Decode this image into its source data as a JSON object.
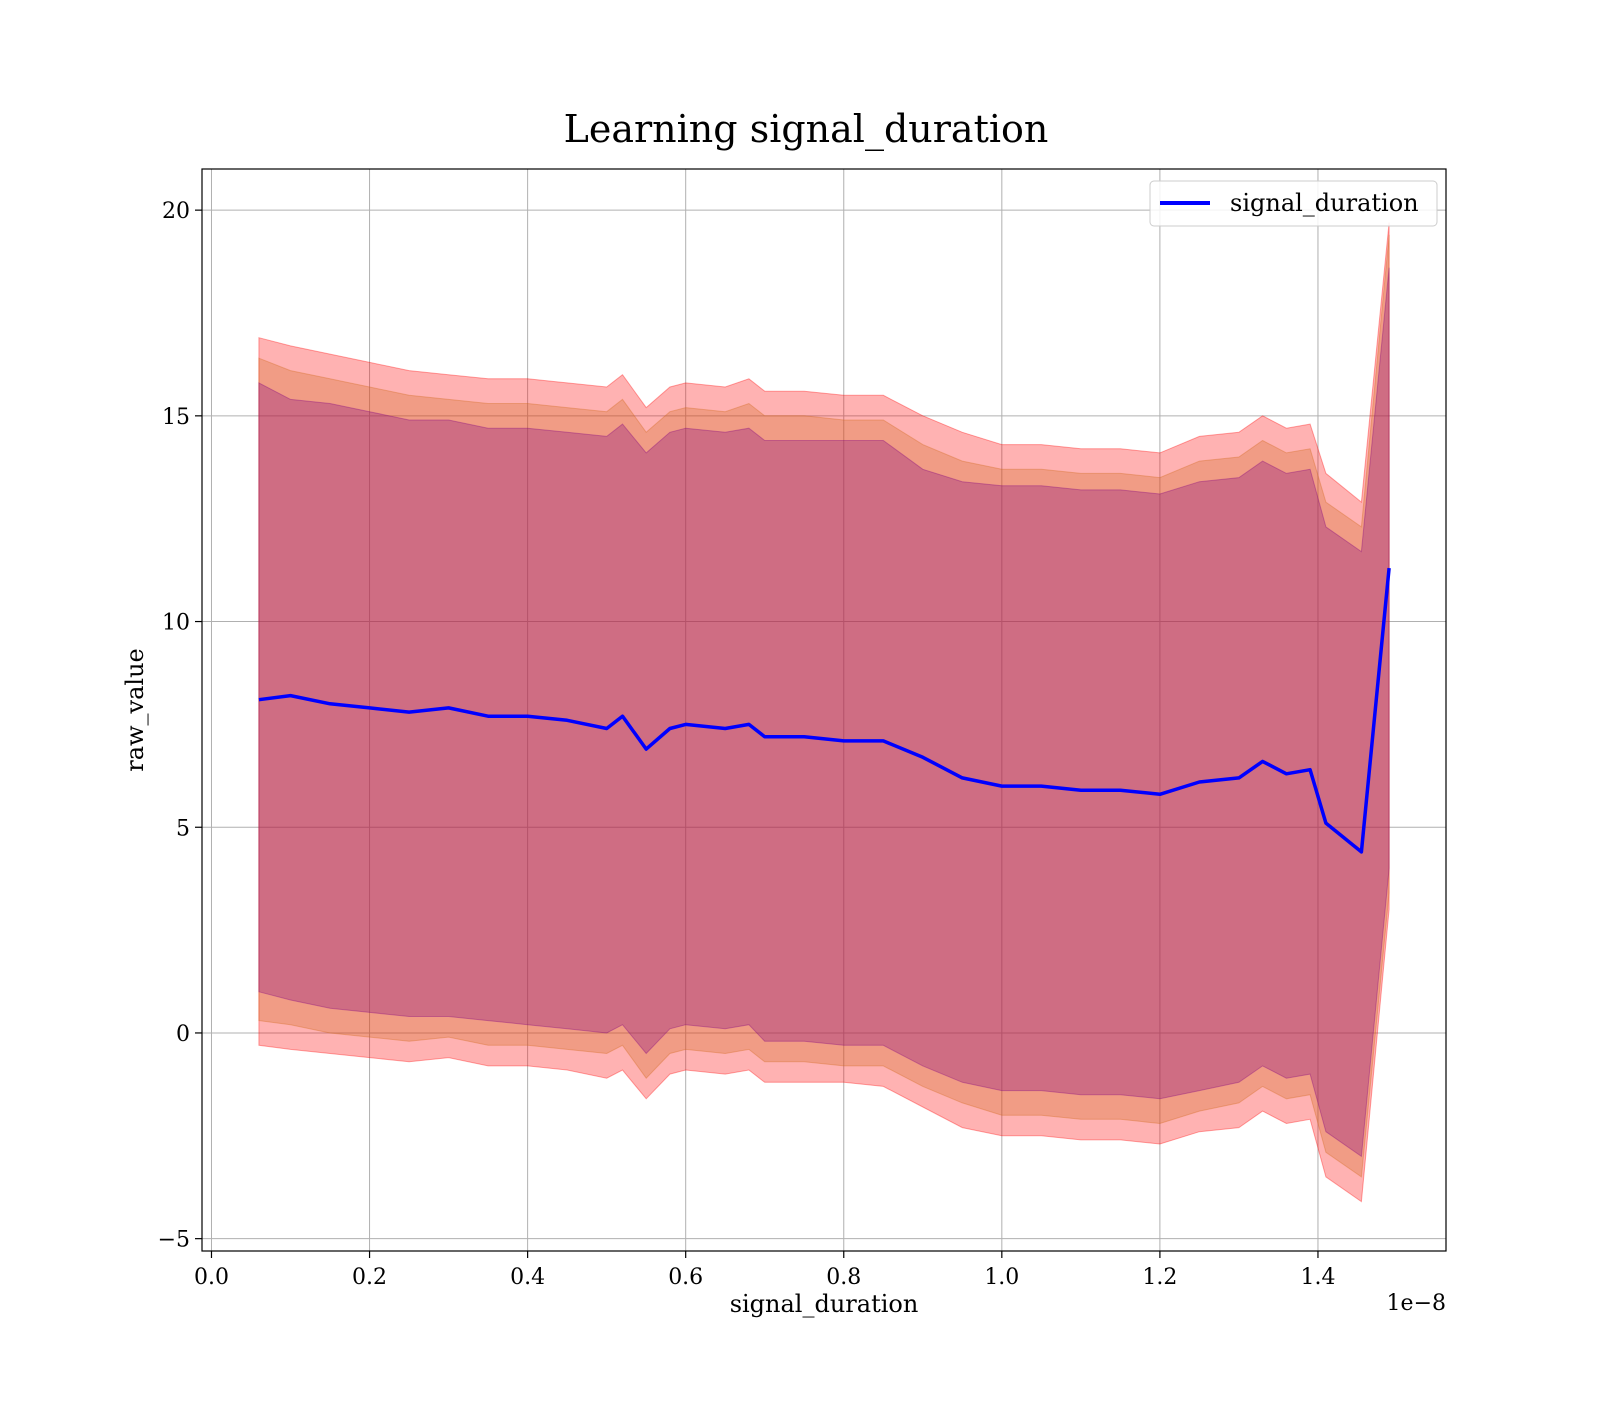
{
  "chart_data": {
    "type": "area",
    "title": "Learning signal_duration",
    "xlabel": "signal_duration",
    "ylabel": "raw_value",
    "x_offset_label": "1e−8",
    "xlim": [
      -0.012,
      1.562
    ],
    "ylim": [
      -5.3,
      21.0
    ],
    "x_scale_note": "x values in units of 1e-8",
    "x_ticks": [
      0.0,
      0.2,
      0.4,
      0.6,
      0.8,
      1.0,
      1.2,
      1.4
    ],
    "x_tick_labels": [
      "0.0",
      "0.2",
      "0.4",
      "0.6",
      "0.8",
      "1.0",
      "1.2",
      "1.4"
    ],
    "y_ticks": [
      -5,
      0,
      5,
      10,
      15,
      20
    ],
    "y_tick_labels": [
      "−5",
      "0",
      "5",
      "10",
      "15",
      "20"
    ],
    "grid": true,
    "legend": {
      "placement": "upper right",
      "entries": [
        "signal_duration"
      ]
    },
    "colors": {
      "line": "#0000ff",
      "band_outer": "#ff0000",
      "band_middle": "#d2691e",
      "band_inner": "#800080"
    },
    "x": [
      0.06,
      0.1,
      0.15,
      0.2,
      0.25,
      0.3,
      0.35,
      0.4,
      0.45,
      0.5,
      0.52,
      0.55,
      0.58,
      0.6,
      0.65,
      0.68,
      0.7,
      0.75,
      0.8,
      0.85,
      0.9,
      0.95,
      1.0,
      1.05,
      1.1,
      1.15,
      1.2,
      1.25,
      1.3,
      1.33,
      1.36,
      1.39,
      1.41,
      1.455,
      1.49
    ],
    "series": [
      {
        "name": "signal_duration",
        "values": [
          8.1,
          8.2,
          8.0,
          7.9,
          7.8,
          7.9,
          7.7,
          7.7,
          7.6,
          7.4,
          7.7,
          6.9,
          7.4,
          7.5,
          7.4,
          7.5,
          7.2,
          7.2,
          7.1,
          7.1,
          6.7,
          6.2,
          6.0,
          6.0,
          5.9,
          5.9,
          5.8,
          6.1,
          6.2,
          6.6,
          6.3,
          6.4,
          5.1,
          4.4,
          11.3
        ]
      }
    ],
    "bands": [
      {
        "level": "outer",
        "upper": [
          16.9,
          16.7,
          16.5,
          16.3,
          16.1,
          16.0,
          15.9,
          15.9,
          15.8,
          15.7,
          16.0,
          15.2,
          15.7,
          15.8,
          15.7,
          15.9,
          15.6,
          15.6,
          15.5,
          15.5,
          15.0,
          14.6,
          14.3,
          14.3,
          14.2,
          14.2,
          14.1,
          14.5,
          14.6,
          15.0,
          14.7,
          14.8,
          13.6,
          12.9,
          19.7
        ],
        "lower": [
          -0.3,
          -0.4,
          -0.5,
          -0.6,
          -0.7,
          -0.6,
          -0.8,
          -0.8,
          -0.9,
          -1.1,
          -0.9,
          -1.6,
          -1.0,
          -0.9,
          -1.0,
          -0.9,
          -1.2,
          -1.2,
          -1.2,
          -1.3,
          -1.8,
          -2.3,
          -2.5,
          -2.5,
          -2.6,
          -2.6,
          -2.7,
          -2.4,
          -2.3,
          -1.9,
          -2.2,
          -2.1,
          -3.5,
          -4.1,
          3.0
        ]
      },
      {
        "level": "middle",
        "upper": [
          16.4,
          16.1,
          15.9,
          15.7,
          15.5,
          15.4,
          15.3,
          15.3,
          15.2,
          15.1,
          15.4,
          14.6,
          15.1,
          15.2,
          15.1,
          15.3,
          15.0,
          15.0,
          14.9,
          14.9,
          14.3,
          13.9,
          13.7,
          13.7,
          13.6,
          13.6,
          13.5,
          13.9,
          14.0,
          14.4,
          14.1,
          14.2,
          12.9,
          12.3,
          19.4
        ],
        "lower": [
          0.3,
          0.2,
          0.0,
          -0.1,
          -0.2,
          -0.1,
          -0.3,
          -0.3,
          -0.4,
          -0.5,
          -0.3,
          -1.1,
          -0.5,
          -0.4,
          -0.5,
          -0.4,
          -0.7,
          -0.7,
          -0.8,
          -0.8,
          -1.3,
          -1.7,
          -2.0,
          -2.0,
          -2.1,
          -2.1,
          -2.2,
          -1.9,
          -1.7,
          -1.3,
          -1.6,
          -1.5,
          -2.9,
          -3.5,
          3.4
        ]
      },
      {
        "level": "inner",
        "upper": [
          15.8,
          15.4,
          15.3,
          15.1,
          14.9,
          14.9,
          14.7,
          14.7,
          14.6,
          14.5,
          14.8,
          14.1,
          14.6,
          14.7,
          14.6,
          14.7,
          14.4,
          14.4,
          14.4,
          14.4,
          13.7,
          13.4,
          13.3,
          13.3,
          13.2,
          13.2,
          13.1,
          13.4,
          13.5,
          13.9,
          13.6,
          13.7,
          12.3,
          11.7,
          18.6
        ],
        "lower": [
          1.0,
          0.8,
          0.6,
          0.5,
          0.4,
          0.4,
          0.3,
          0.2,
          0.1,
          0.0,
          0.2,
          -0.5,
          0.1,
          0.2,
          0.1,
          0.2,
          -0.2,
          -0.2,
          -0.3,
          -0.3,
          -0.8,
          -1.2,
          -1.4,
          -1.4,
          -1.5,
          -1.5,
          -1.6,
          -1.4,
          -1.2,
          -0.8,
          -1.1,
          -1.0,
          -2.4,
          -3.0,
          4.0
        ]
      }
    ]
  }
}
